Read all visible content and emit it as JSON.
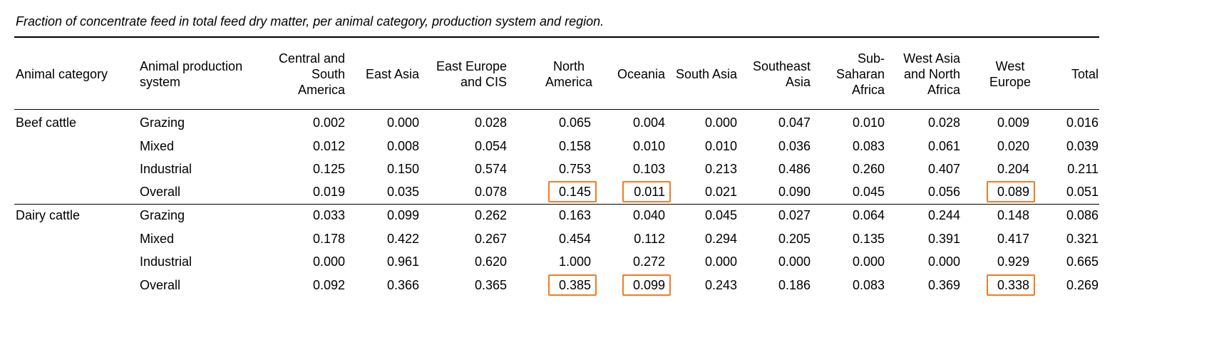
{
  "caption": "Fraction of concentrate feed in total feed dry matter, per animal category, production system and region.",
  "header": {
    "animal_category": "Animal category",
    "production_system": [
      "Animal production",
      "system"
    ],
    "regions": [
      [
        "Central and",
        "South",
        "America"
      ],
      [
        "East Asia"
      ],
      [
        "East Europe",
        "and CIS"
      ],
      [
        "North",
        "America"
      ],
      [
        "Oceania"
      ],
      [
        "South Asia"
      ],
      [
        "Southeast",
        "Asia"
      ],
      [
        "Sub-",
        "Saharan",
        "Africa"
      ],
      [
        "West Asia",
        "and North",
        "Africa"
      ],
      [
        "West",
        "Europe"
      ],
      [
        "Total"
      ]
    ]
  },
  "groups": [
    {
      "category": "Beef cattle",
      "rows": [
        {
          "system": "Grazing",
          "values": [
            "0.002",
            "0.000",
            "0.028",
            "0.065",
            "0.004",
            "0.000",
            "0.047",
            "0.010",
            "0.028",
            "0.009",
            "0.016"
          ]
        },
        {
          "system": "Mixed",
          "values": [
            "0.012",
            "0.008",
            "0.054",
            "0.158",
            "0.010",
            "0.010",
            "0.036",
            "0.083",
            "0.061",
            "0.020",
            "0.039"
          ]
        },
        {
          "system": "Industrial",
          "values": [
            "0.125",
            "0.150",
            "0.574",
            "0.753",
            "0.103",
            "0.213",
            "0.486",
            "0.260",
            "0.407",
            "0.204",
            "0.211"
          ]
        },
        {
          "system": "Overall",
          "values": [
            "0.019",
            "0.035",
            "0.078",
            "0.145",
            "0.011",
            "0.021",
            "0.090",
            "0.045",
            "0.056",
            "0.089",
            "0.051"
          ]
        }
      ]
    },
    {
      "category": "Dairy cattle",
      "rows": [
        {
          "system": "Grazing",
          "values": [
            "0.033",
            "0.099",
            "0.262",
            "0.163",
            "0.040",
            "0.045",
            "0.027",
            "0.064",
            "0.244",
            "0.148",
            "0.086"
          ]
        },
        {
          "system": "Mixed",
          "values": [
            "0.178",
            "0.422",
            "0.267",
            "0.454",
            "0.112",
            "0.294",
            "0.205",
            "0.135",
            "0.391",
            "0.417",
            "0.321"
          ]
        },
        {
          "system": "Industrial",
          "values": [
            "0.000",
            "0.961",
            "0.620",
            "1.000",
            "0.272",
            "0.000",
            "0.000",
            "0.000",
            "0.000",
            "0.929",
            "0.665"
          ]
        },
        {
          "system": "Overall",
          "values": [
            "0.092",
            "0.366",
            "0.365",
            "0.385",
            "0.099",
            "0.243",
            "0.186",
            "0.083",
            "0.369",
            "0.338",
            "0.269"
          ]
        }
      ]
    }
  ],
  "highlight_color": "#F07C26"
}
